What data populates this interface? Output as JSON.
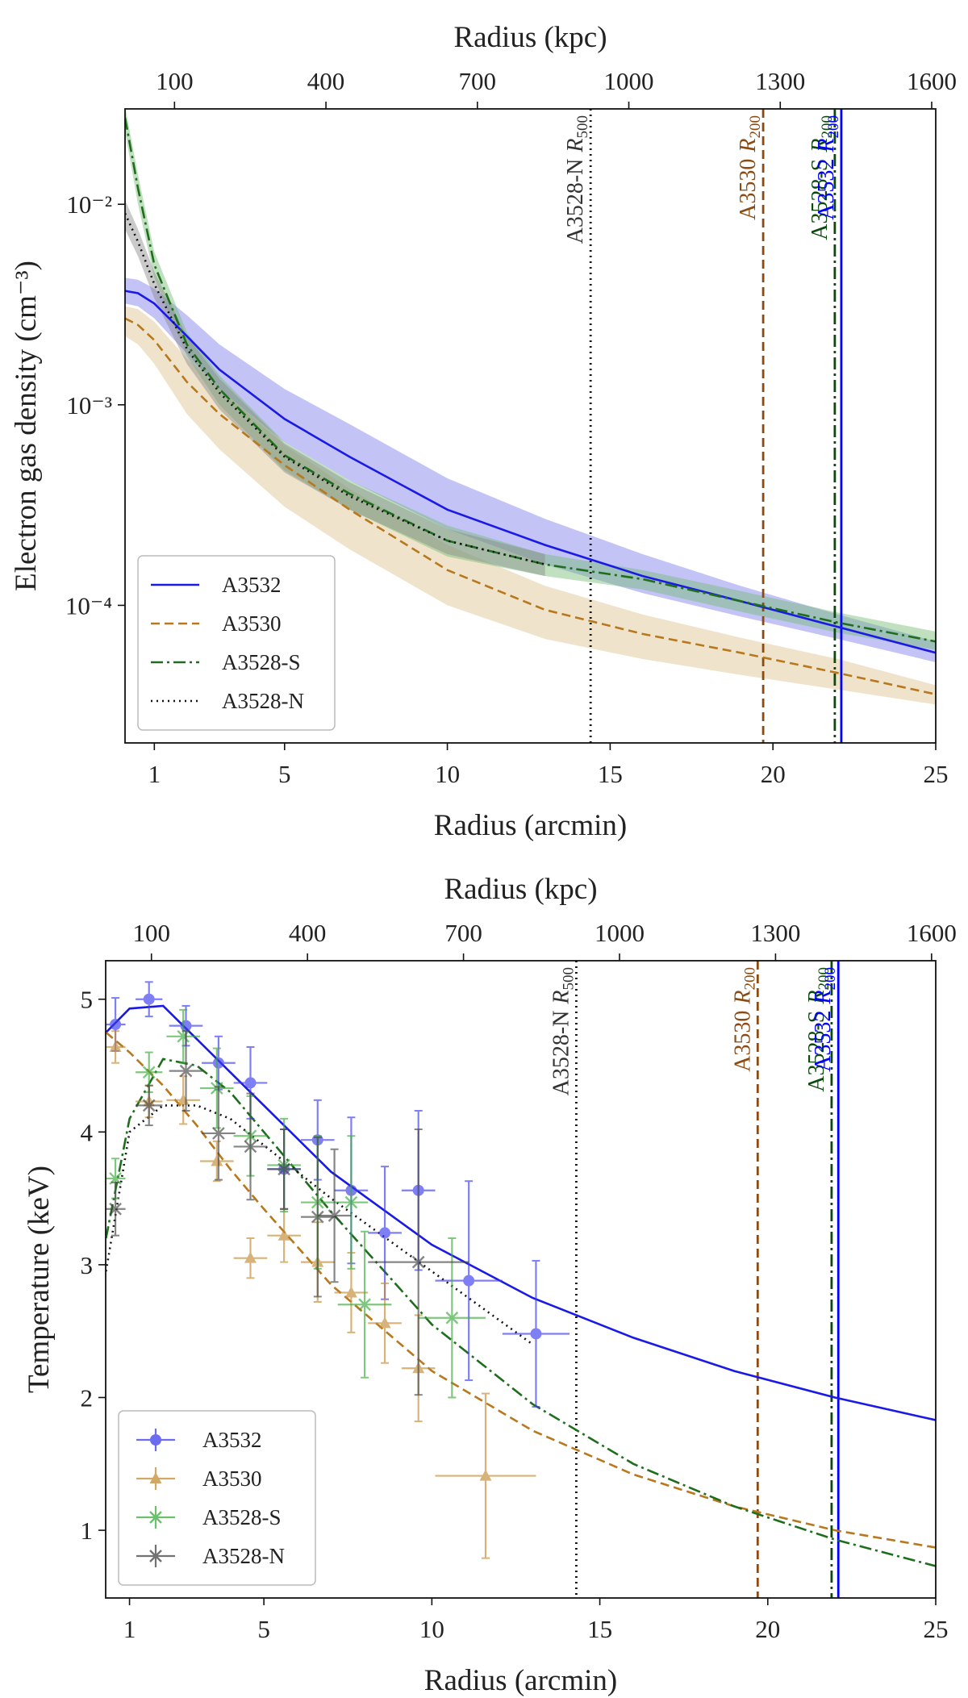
{
  "chart_data": [
    {
      "type": "line",
      "xlabel": "Radius (arcmin)",
      "x2label": "Radius (kpc)",
      "ylabel": "Electron gas density (cm⁻³)",
      "xlim": [
        0.1,
        25
      ],
      "xticks": [
        1,
        5,
        10,
        15,
        20,
        25
      ],
      "x2lim": [
        2,
        1608
      ],
      "x2ticks": [
        100,
        400,
        700,
        1000,
        1300,
        1600
      ],
      "ylim": [
        2.06e-05,
        0.0299
      ],
      "log_y": true,
      "yticks": [
        {
          "value": 0.0001,
          "label": "10⁻⁴"
        },
        {
          "value": 0.001,
          "label": "10⁻³"
        },
        {
          "value": 0.01,
          "label": "10⁻²"
        }
      ],
      "legend": "lower left",
      "x": [
        0.1,
        0.5,
        1,
        2,
        3,
        5,
        7,
        10,
        13,
        16,
        19,
        22,
        25
      ],
      "series": [
        {
          "name": "A3532",
          "color": "#1a1ae6",
          "linestyle": "-",
          "band_color": "#7b7bea",
          "values": [
            0.0037,
            0.0036,
            0.0032,
            0.0022,
            0.0015,
            0.00085,
            0.00055,
            0.0003,
            0.0002,
            0.00014,
            0.000105,
            7.8e-05,
            5.8e-05
          ],
          "band_lower": [
            0.0032,
            0.0031,
            0.0027,
            0.0018,
            0.0012,
            0.00065,
            0.00042,
            0.00024,
            0.00016,
            0.000115,
            8.8e-05,
            6.8e-05,
            5.2e-05
          ],
          "band_upper": [
            0.0043,
            0.0042,
            0.0038,
            0.0028,
            0.002,
            0.0012,
            0.0008,
            0.00043,
            0.00027,
            0.00018,
            0.000125,
            9e-05,
            6.6e-05
          ]
        },
        {
          "name": "A3530",
          "color": "#b8781e",
          "linestyle": "--",
          "band_color": "#dcc38c",
          "values": [
            0.0027,
            0.0025,
            0.0021,
            0.0013,
            0.0009,
            0.0005,
            0.0003,
            0.00015,
            9.5e-05,
            7.2e-05,
            5.8e-05,
            4.6e-05,
            3.6e-05
          ],
          "band_lower": [
            0.0022,
            0.002,
            0.0016,
            0.0009,
            0.0006,
            0.00031,
            0.00019,
            0.0001,
            6.8e-05,
            5.4e-05,
            4.5e-05,
            3.8e-05,
            3.2e-05
          ],
          "band_upper": [
            0.0031,
            0.003,
            0.0026,
            0.0017,
            0.0012,
            0.00063,
            0.00038,
            0.0002,
            0.000125,
            9e-05,
            6.9e-05,
            5.4e-05,
            4e-05
          ]
        },
        {
          "name": "A3528-S",
          "color": "#1e6e1e",
          "linestyle": "-.",
          "band_color": "#74bb74",
          "values": [
            0.027,
            0.012,
            0.005,
            0.002,
            0.0012,
            0.00056,
            0.00036,
            0.00021,
            0.00016,
            0.000135,
            0.000105,
            8.2e-05,
            6.6e-05
          ],
          "band_lower": [
            0.023,
            0.01,
            0.0043,
            0.00175,
            0.001,
            0.00047,
            0.0003,
            0.000175,
            0.00014,
            0.00012,
            9.3e-05,
            7.3e-05,
            6e-05
          ],
          "band_upper": [
            0.031,
            0.014,
            0.0058,
            0.0023,
            0.0014,
            0.00065,
            0.00042,
            0.00025,
            0.00018,
            0.00015,
            0.000118,
            9.2e-05,
            7.4e-05
          ]
        },
        {
          "name": "A3528-N",
          "color": "#111111",
          "linestyle": ":",
          "band_color": "#8a8a8a",
          "values": [
            0.009,
            0.0065,
            0.004,
            0.0019,
            0.00115,
            0.00055,
            0.00035,
            0.00021,
            0.00016,
            null,
            null,
            null,
            null
          ],
          "band_lower": [
            0.0075,
            0.0055,
            0.0034,
            0.0016,
            0.00095,
            0.00046,
            0.0003,
            0.00018,
            0.00014,
            null,
            null,
            null,
            null
          ],
          "band_upper": [
            0.0105,
            0.0075,
            0.0046,
            0.0022,
            0.00135,
            0.00064,
            0.00041,
            0.00024,
            0.00018,
            null,
            null,
            null,
            null
          ]
        }
      ],
      "vlines": [
        {
          "x": 14.4,
          "label": "A3528-N",
          "radius": "R",
          "subscript": "500",
          "color": "#111111",
          "text_color": "#333333",
          "linestyle": ":"
        },
        {
          "x": 19.7,
          "label": "A3530",
          "radius": "R",
          "subscript": "200",
          "color": "#8a4a12",
          "text_color": "#8a4a12",
          "linestyle": "--"
        },
        {
          "x": 21.9,
          "label": "A3528-S",
          "radius": "R",
          "subscript": "200",
          "color": "#0c4a0c",
          "text_color": "#0c4a0c",
          "linestyle": "-."
        },
        {
          "x": 22.1,
          "label": "A3532",
          "radius": "R",
          "subscript": "200",
          "color": "#0000ff",
          "text_color": "#0000ff",
          "linestyle": "-"
        }
      ]
    },
    {
      "type": "line",
      "xlabel": "Radius (arcmin)",
      "x2label": "Radius (kpc)",
      "ylabel": "Temperature (keV)",
      "xlim": [
        0.29,
        25
      ],
      "xticks": [
        1,
        5,
        10,
        15,
        20,
        25
      ],
      "x2lim": [
        12,
        1608
      ],
      "x2ticks": [
        100,
        400,
        700,
        1000,
        1300,
        1600
      ],
      "ylim": [
        0.49,
        5.29
      ],
      "yticks": [
        1,
        2,
        3,
        4,
        5
      ],
      "legend": "lower left",
      "x": [
        0.3,
        1,
        2,
        3,
        4,
        5,
        7,
        10,
        13,
        16,
        19,
        22,
        25
      ],
      "series": [
        {
          "name": "A3532",
          "color": "#1a1ae6",
          "linestyle": "-",
          "marker": "o",
          "point_color": "#3c3cf0",
          "values": [
            4.75,
            4.93,
            4.95,
            4.7,
            4.45,
            4.2,
            3.7,
            3.15,
            2.75,
            2.45,
            2.2,
            2.0,
            1.83
          ],
          "points": {
            "x": [
              0.58,
              1.58,
              2.68,
              3.65,
              4.6,
              5.6,
              6.6,
              7.6,
              8.6,
              9.6,
              11.1,
              13.1
            ],
            "xerr": [
              0.3,
              0.4,
              0.5,
              0.5,
              0.5,
              0.5,
              0.5,
              0.5,
              0.5,
              0.5,
              1,
              1
            ],
            "values": [
              4.81,
              5.0,
              4.8,
              4.52,
              4.37,
              3.72,
              3.94,
              3.56,
              3.24,
              3.56,
              2.88,
              2.48
            ],
            "errors": [
              0.2,
              0.13,
              0.15,
              0.2,
              0.27,
              0.3,
              0.3,
              0.55,
              0.5,
              0.6,
              0.75,
              0.55
            ]
          }
        },
        {
          "name": "A3530",
          "color": "#b8781e",
          "linestyle": "--",
          "marker": "^",
          "point_color": "#c48c32",
          "values": [
            4.75,
            4.6,
            4.35,
            4.05,
            3.72,
            3.42,
            2.85,
            2.2,
            1.75,
            1.42,
            1.18,
            1.0,
            0.87
          ],
          "points": {
            "x": [
              0.58,
              1.58,
              2.6,
              3.6,
              4.6,
              5.6,
              6.6,
              7.6,
              8.6,
              9.6,
              11.6
            ],
            "xerr": [
              0.3,
              0.4,
              0.5,
              0.5,
              0.5,
              0.5,
              0.5,
              0.5,
              0.5,
              0.5,
              1.5
            ],
            "values": [
              4.64,
              4.23,
              4.24,
              3.78,
              3.05,
              3.22,
              3.02,
              2.79,
              2.56,
              2.22,
              1.41
            ],
            "errors": [
              0.12,
              0.12,
              0.18,
              0.15,
              0.15,
              0.2,
              0.3,
              0.3,
              0.3,
              0.4,
              0.62
            ]
          }
        },
        {
          "name": "A3528-S",
          "color": "#1e6e1e",
          "linestyle": "-.",
          "marker": "x",
          "point_color": "#3caa3c",
          "values": [
            3.2,
            4.1,
            4.55,
            4.5,
            4.3,
            4.0,
            3.4,
            2.55,
            1.95,
            1.5,
            1.18,
            0.93,
            0.73
          ],
          "points": {
            "x": [
              0.58,
              1.58,
              2.6,
              3.6,
              4.6,
              5.6,
              6.6,
              7.6,
              8.0,
              10.6
            ],
            "xerr": [
              0.3,
              0.4,
              0.5,
              0.5,
              0.5,
              0.5,
              0.5,
              0.5,
              0.8,
              1
            ],
            "values": [
              3.65,
              4.45,
              4.72,
              4.33,
              3.97,
              3.75,
              3.47,
              3.47,
              2.7,
              2.6
            ],
            "errors": [
              0.15,
              0.15,
              0.2,
              0.3,
              0.3,
              0.35,
              0.5,
              0.5,
              0.55,
              0.6
            ]
          }
        },
        {
          "name": "A3528-N",
          "color": "#111111",
          "linestyle": ":",
          "marker": "x",
          "point_color": "#444444",
          "values": [
            2.95,
            4.0,
            4.2,
            4.2,
            4.1,
            3.9,
            3.5,
            2.95,
            2.4,
            null,
            null,
            null,
            null
          ],
          "points": {
            "x": [
              0.58,
              1.58,
              2.68,
              3.65,
              4.6,
              5.6,
              6.6,
              7.1,
              9.6
            ],
            "xerr": [
              0.3,
              0.4,
              0.5,
              0.5,
              0.5,
              0.5,
              0.5,
              0.5,
              1.5
            ],
            "values": [
              3.42,
              4.2,
              4.46,
              3.99,
              3.89,
              3.72,
              3.36,
              3.37,
              3.02
            ],
            "errors": [
              0.2,
              0.15,
              0.3,
              0.35,
              0.4,
              0.3,
              0.6,
              0.5,
              1.0
            ]
          }
        }
      ],
      "vlines": [
        {
          "x": 14.3,
          "label": "A3528-N",
          "radius": "R",
          "subscript": "500",
          "color": "#111111",
          "text_color": "#333333",
          "linestyle": ":"
        },
        {
          "x": 19.7,
          "label": "A3530",
          "radius": "R",
          "subscript": "200",
          "color": "#8a4a12",
          "text_color": "#8a4a12",
          "linestyle": "--"
        },
        {
          "x": 21.9,
          "label": "A3528-S",
          "radius": "R",
          "subscript": "200",
          "color": "#0c4a0c",
          "text_color": "#0c4a0c",
          "linestyle": "-."
        },
        {
          "x": 22.1,
          "label": "A3532",
          "radius": "R",
          "subscript": "200",
          "color": "#0000ff",
          "text_color": "#0000ff",
          "linestyle": "-"
        }
      ]
    }
  ]
}
